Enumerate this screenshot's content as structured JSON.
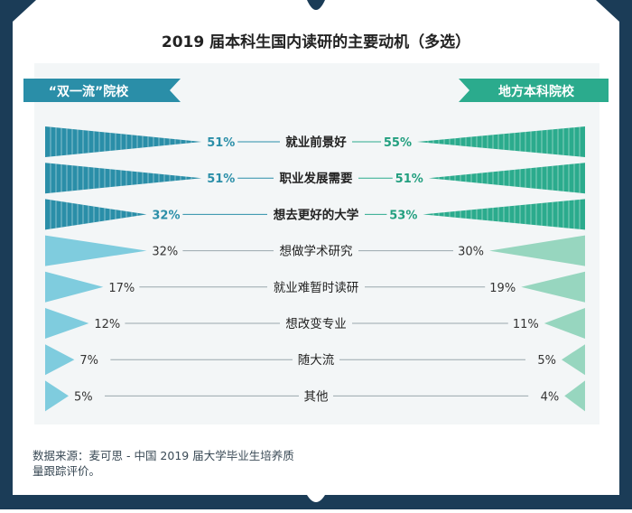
{
  "colors": {
    "frame": "#1b3c57",
    "page": "#ffffff",
    "panel": "#f3f6f7",
    "left_dark": "#2a8ea8",
    "left_light": "#7fccde",
    "right_dark": "#2bab8d",
    "right_light": "#97d6bf",
    "left_text": "#2a8ea8",
    "right_text": "#229f7f",
    "label_text": "#222222"
  },
  "chart_data": {
    "type": "bar",
    "title": "2019 届本科生国内读研的主要动机（多选）",
    "categories": [
      "就业前景好",
      "职业发展需要",
      "想去更好的大学",
      "想做学术研究",
      "就业难暂时读研",
      "想改变专业",
      "随大流",
      "其他"
    ],
    "series": [
      {
        "name": "“双一流”院校",
        "side": "left",
        "values": [
          51,
          51,
          32,
          32,
          17,
          12,
          7,
          5
        ],
        "labels": [
          "51%",
          "51%",
          "32%",
          "32%",
          "17%",
          "12%",
          "7%",
          "5%"
        ]
      },
      {
        "name": "地方本科院校",
        "side": "right",
        "values": [
          55,
          51,
          53,
          30,
          19,
          11,
          5,
          4
        ],
        "labels": [
          "55%",
          "51%",
          "53%",
          "30%",
          "19%",
          "11%",
          "5%",
          "4%"
        ]
      }
    ],
    "highlighted_rows": 3,
    "ylim": [
      0,
      55
    ]
  },
  "source_note": "数据来源：麦可思 - 中国 2019 届大学毕业生培养质量跟踪评价。"
}
